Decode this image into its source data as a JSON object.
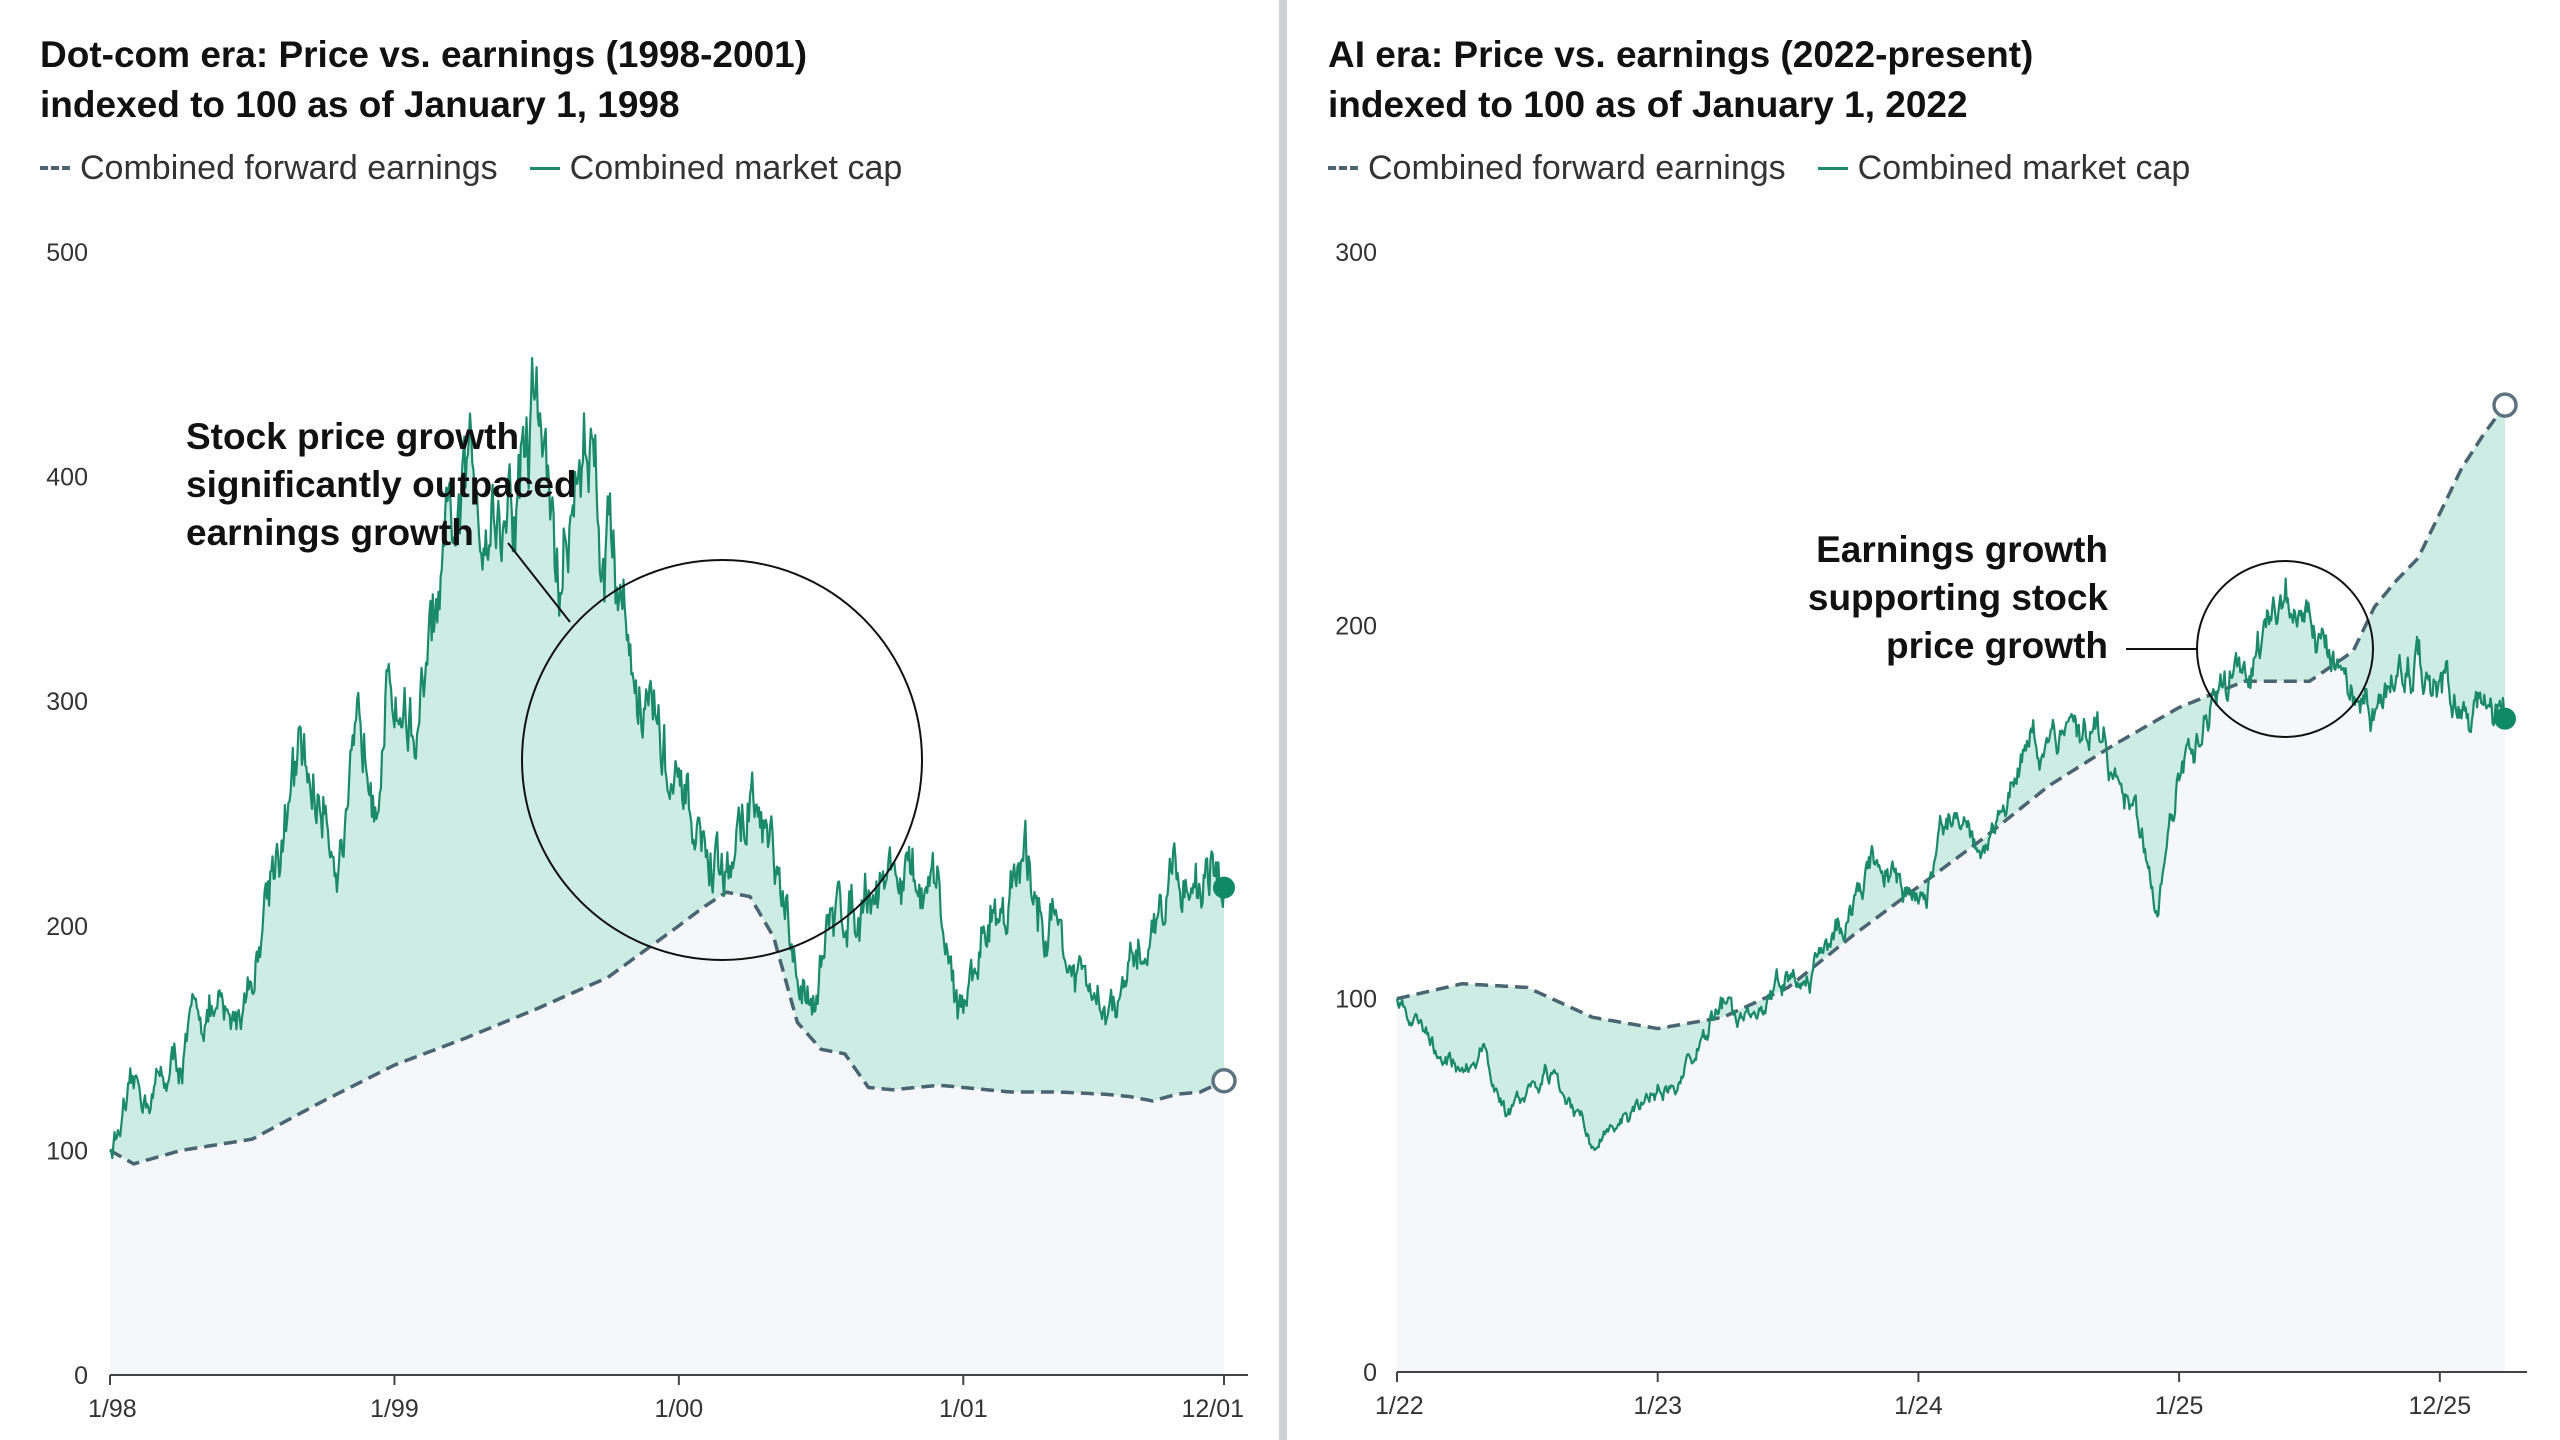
{
  "chart_data": [
    {
      "type": "line",
      "title": "Dot-com era: Price vs. earnings (1998-2001)",
      "subtitle": "indexed to 100 as of January 1, 1998",
      "xlabel": "",
      "ylabel": "",
      "ylim": [
        0,
        500
      ],
      "y_ticks": [
        "0",
        "100",
        "200",
        "300",
        "400",
        "500"
      ],
      "x_ticks": [
        "1/98",
        "1/99",
        "1/00",
        "1/01",
        "12/01"
      ],
      "legend": "top-left",
      "legend_labels": {
        "earnings": "Combined forward earnings",
        "market_cap": "Combined market cap"
      },
      "grid": false,
      "annotation": [
        "Stock price growth",
        "significantly outpaced",
        "earnings growth"
      ],
      "series": [
        {
          "name": "Combined forward earnings",
          "style": "dashed",
          "color": "#4a6472",
          "x": [
            0,
            1,
            3,
            6,
            9,
            12,
            15,
            18,
            21,
            24,
            25,
            26,
            27,
            28,
            29,
            30,
            31,
            32,
            33,
            34,
            35,
            36,
            38,
            40,
            42,
            43,
            44,
            45,
            46,
            47
          ],
          "values": [
            100,
            94,
            100,
            105,
            122,
            138,
            150,
            163,
            177,
            200,
            208,
            215,
            213,
            195,
            157,
            145,
            143,
            128,
            127,
            128,
            129,
            128,
            126,
            126,
            125,
            124,
            122,
            125,
            126,
            131
          ]
        },
        {
          "name": "Combined market cap",
          "style": "solid",
          "color": "#1a8a6a",
          "x": [
            0,
            1,
            2,
            3,
            4,
            5,
            6,
            7,
            8,
            9,
            10,
            11,
            12,
            13,
            14,
            15,
            16,
            17,
            18,
            19,
            20,
            21,
            22,
            23,
            24,
            25,
            26,
            27,
            28,
            29,
            30,
            31,
            32,
            33,
            34,
            35,
            36,
            37,
            38,
            39,
            40,
            41,
            42,
            43,
            44,
            45,
            46,
            47
          ],
          "values": [
            100,
            120,
            130,
            140,
            165,
            150,
            180,
            240,
            265,
            255,
            240,
            290,
            310,
            290,
            340,
            385,
            400,
            380,
            440,
            350,
            420,
            385,
            330,
            290,
            245,
            235,
            215,
            260,
            225,
            165,
            185,
            210,
            225,
            228,
            215,
            200,
            160,
            205,
            220,
            215,
            200,
            170,
            155,
            170,
            205,
            228,
            225,
            217
          ]
        }
      ]
    },
    {
      "type": "line",
      "title": "AI era: Price vs. earnings (2022-present)",
      "subtitle": "indexed to 100 as of January 1, 2022",
      "xlabel": "",
      "ylabel": "",
      "ylim": [
        0,
        300
      ],
      "y_ticks": [
        "0",
        "100",
        "200",
        "300"
      ],
      "x_ticks": [
        "1/22",
        "1/23",
        "1/24",
        "1/25",
        "12/25"
      ],
      "legend": "top-left",
      "legend_labels": {
        "earnings": "Combined forward earnings",
        "market_cap": "Combined market cap"
      },
      "grid": false,
      "annotation": [
        "Earnings growth",
        "supporting stock",
        "price growth"
      ],
      "series": [
        {
          "name": "Combined forward earnings",
          "style": "dashed",
          "color": "#4a6472",
          "x": [
            0,
            3,
            6,
            9,
            12,
            15,
            18,
            21,
            24,
            27,
            30,
            33,
            36,
            39,
            42,
            44,
            45,
            46,
            47,
            48,
            49,
            50,
            51
          ],
          "values": [
            100,
            104,
            103,
            95,
            92,
            95,
            103,
            117,
            130,
            143,
            157,
            168,
            178,
            185,
            185,
            193,
            205,
            212,
            218,
            230,
            242,
            251,
            259
          ]
        },
        {
          "name": "Combined market cap",
          "style": "solid",
          "color": "#1a8a6a",
          "x": [
            0,
            1,
            2,
            3,
            4,
            5,
            6,
            7,
            8,
            9,
            10,
            11,
            12,
            13,
            14,
            15,
            16,
            17,
            18,
            19,
            20,
            21,
            22,
            23,
            24,
            25,
            26,
            27,
            28,
            29,
            30,
            31,
            32,
            33,
            34,
            35,
            36,
            37,
            38,
            39,
            40,
            41,
            42,
            43,
            44,
            45,
            46,
            47,
            48,
            49,
            50,
            51
          ],
          "values": [
            100,
            93,
            88,
            80,
            85,
            70,
            75,
            80,
            70,
            62,
            65,
            70,
            75,
            78,
            90,
            98,
            92,
            100,
            108,
            105,
            118,
            125,
            138,
            132,
            125,
            138,
            150,
            140,
            155,
            165,
            160,
            168,
            172,
            165,
            150,
            125,
            165,
            168,
            182,
            188,
            195,
            205,
            200,
            192,
            180,
            175,
            185,
            190,
            182,
            178,
            176,
            175
          ]
        }
      ]
    }
  ]
}
